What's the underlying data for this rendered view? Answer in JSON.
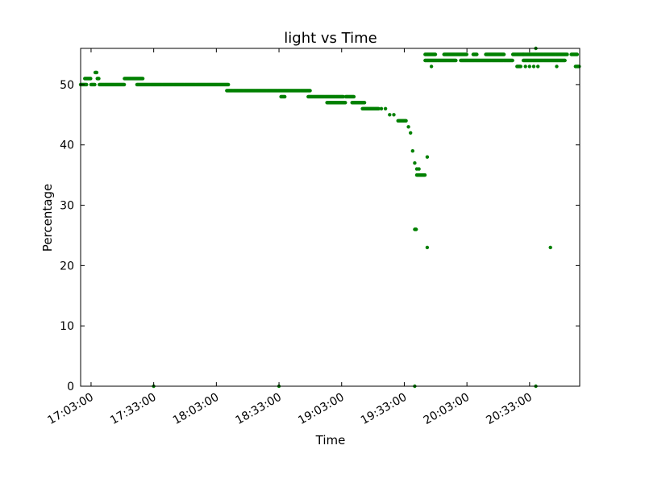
{
  "chart_data": {
    "type": "scatter",
    "title": "light vs Time",
    "xlabel": "Time",
    "ylabel": "Percentage",
    "xlim": [
      "16:58:00",
      "20:57:00"
    ],
    "ylim": [
      0,
      56
    ],
    "x_ticks": [
      "17:03:00",
      "17:33:00",
      "18:03:00",
      "18:33:00",
      "19:03:00",
      "19:33:00",
      "20:03:00",
      "20:33:00"
    ],
    "y_ticks": [
      0,
      10,
      20,
      30,
      40,
      50
    ],
    "grid": false,
    "marker_color": "#008000",
    "segments": [
      {
        "from": "16:58:00",
        "to": "17:01:00",
        "y": 50
      },
      {
        "from": "17:00:00",
        "to": "17:03:00",
        "y": 51
      },
      {
        "from": "17:03:00",
        "to": "17:05:00",
        "y": 50
      },
      {
        "from": "17:05:00",
        "to": "17:06:00",
        "y": 52
      },
      {
        "from": "17:06:00",
        "to": "17:07:00",
        "y": 51
      },
      {
        "from": "17:07:00",
        "to": "17:19:00",
        "y": 50
      },
      {
        "from": "17:19:00",
        "to": "17:28:00",
        "y": 51
      },
      {
        "from": "17:25:00",
        "to": "18:09:00",
        "y": 50
      },
      {
        "from": "18:08:00",
        "to": "18:48:00",
        "y": 49
      },
      {
        "from": "18:34:00",
        "to": "18:36:00",
        "y": 48
      },
      {
        "from": "18:47:00",
        "to": "19:04:00",
        "y": 48
      },
      {
        "from": "18:56:00",
        "to": "19:05:00",
        "y": 47
      },
      {
        "from": "19:05:00",
        "to": "19:09:00",
        "y": 48
      },
      {
        "from": "19:08:00",
        "to": "19:14:00",
        "y": 47
      },
      {
        "from": "19:13:00",
        "to": "19:21:00",
        "y": 46
      },
      {
        "from": "19:30:00",
        "to": "19:34:00",
        "y": 44
      },
      {
        "from": "19:39:00",
        "to": "19:43:00",
        "y": 35
      },
      {
        "from": "19:38:00",
        "to": "19:39:00",
        "y": 26
      },
      {
        "from": "19:43:00",
        "to": "19:58:00",
        "y": 54
      },
      {
        "from": "19:43:00",
        "to": "19:48:00",
        "y": 55
      },
      {
        "from": "19:52:00",
        "to": "20:03:00",
        "y": 55
      },
      {
        "from": "20:00:00",
        "to": "20:25:00",
        "y": 54
      },
      {
        "from": "20:06:00",
        "to": "20:08:00",
        "y": 55
      },
      {
        "from": "20:12:00",
        "to": "20:21:00",
        "y": 55
      },
      {
        "from": "20:25:00",
        "to": "20:30:00",
        "y": 55
      },
      {
        "from": "20:27:00",
        "to": "20:29:00",
        "y": 53
      },
      {
        "from": "20:30:00",
        "to": "20:50:00",
        "y": 54
      },
      {
        "from": "20:30:00",
        "to": "20:51:00",
        "y": 55
      },
      {
        "from": "20:53:00",
        "to": "20:56:00",
        "y": 55
      },
      {
        "from": "20:55:00",
        "to": "20:57:00",
        "y": 53
      }
    ],
    "points": [
      {
        "x": "19:22:00",
        "y": 46
      },
      {
        "x": "19:24:00",
        "y": 46
      },
      {
        "x": "19:26:00",
        "y": 45
      },
      {
        "x": "19:28:00",
        "y": 45
      },
      {
        "x": "19:35:00",
        "y": 43
      },
      {
        "x": "19:36:00",
        "y": 42
      },
      {
        "x": "19:37:00",
        "y": 39
      },
      {
        "x": "19:38:00",
        "y": 37
      },
      {
        "x": "19:39:00",
        "y": 36
      },
      {
        "x": "19:40:00",
        "y": 36
      },
      {
        "x": "19:44:00",
        "y": 38
      },
      {
        "x": "19:44:00",
        "y": 23
      },
      {
        "x": "19:46:00",
        "y": 53
      },
      {
        "x": "20:31:00",
        "y": 53
      },
      {
        "x": "20:33:00",
        "y": 53
      },
      {
        "x": "20:35:00",
        "y": 53
      },
      {
        "x": "20:37:00",
        "y": 53
      },
      {
        "x": "20:36:00",
        "y": 56
      },
      {
        "x": "20:46:00",
        "y": 53
      },
      {
        "x": "20:43:00",
        "y": 23
      },
      {
        "x": "17:33:00",
        "y": 0
      },
      {
        "x": "18:33:00",
        "y": 0
      },
      {
        "x": "19:38:00",
        "y": 0
      },
      {
        "x": "20:36:00",
        "y": 0
      }
    ]
  }
}
